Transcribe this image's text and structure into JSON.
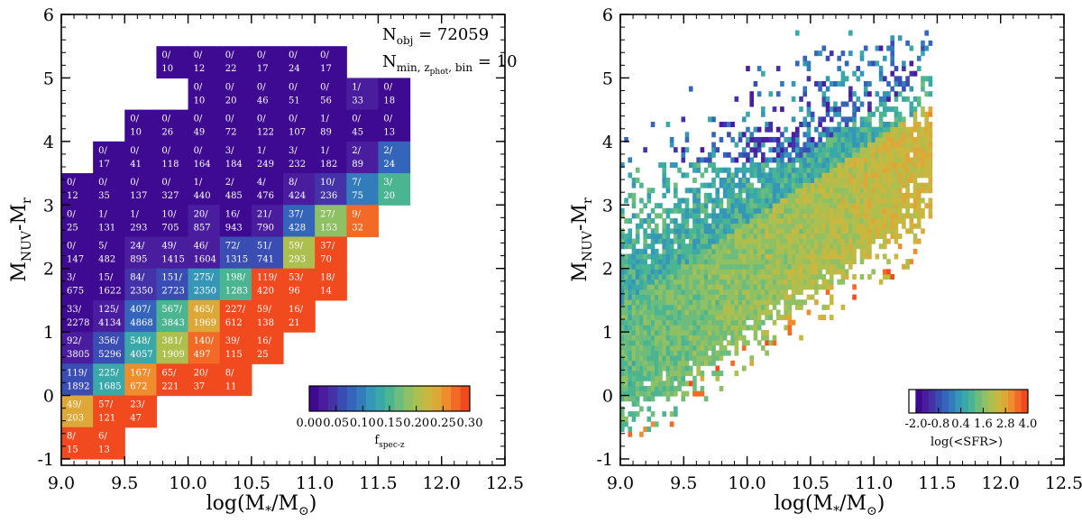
{
  "chart_data": [
    {
      "type": "heatmap",
      "title": "",
      "xlabel": {
        "base": "log(M",
        "sub": "*",
        "mid": "/M",
        "sym": "⊙",
        "end": ")"
      },
      "ylabel": {
        "base": "M",
        "sub": "NUV",
        "mid": "-M",
        "sub2": "r"
      },
      "xlim": [
        9.0,
        12.5
      ],
      "ylim": [
        -1.1,
        6.0
      ],
      "xticks": [
        "9.0",
        "9.5",
        "10.0",
        "10.5",
        "11.0",
        "11.5",
        "12.0",
        "12.5"
      ],
      "yticks": [
        "-1",
        "0",
        "1",
        "2",
        "3",
        "4",
        "5",
        "6"
      ],
      "annotation1": {
        "base": "N",
        "sub": "obj",
        "rest": " = 72059"
      },
      "annotation2": {
        "base": "N",
        "sub": "min, z",
        "subsub": "phot",
        "sub3": ", bin",
        "rest": " = 10"
      },
      "colorbar": {
        "vmin": 0.0,
        "vmax": 0.3,
        "ticks": [
          "0.00",
          "0.05",
          "0.10",
          "0.15",
          "0.20",
          "0.25",
          "0.30"
        ],
        "label_base": "f",
        "label_sub": "spec-z",
        "position": "bottom-right"
      },
      "bin_width_x": 0.25,
      "bin_height_y": 0.5,
      "cells": [
        [
          "9.75",
          "5.25",
          "0/",
          "10"
        ],
        [
          "10.0",
          "5.25",
          "0/",
          "12"
        ],
        [
          "10.25",
          "5.25",
          "0/",
          "22"
        ],
        [
          "10.5",
          "5.25",
          "0/",
          "17"
        ],
        [
          "10.75",
          "5.25",
          "0/",
          "24"
        ],
        [
          "11.0",
          "5.25",
          "0/",
          "17"
        ],
        [
          "10.0",
          "4.75",
          "0/",
          "10"
        ],
        [
          "10.25",
          "4.75",
          "0/",
          "20"
        ],
        [
          "10.5",
          "4.75",
          "0/",
          "46"
        ],
        [
          "10.75",
          "4.75",
          "0/",
          "51"
        ],
        [
          "11.0",
          "4.75",
          "0/",
          "56"
        ],
        [
          "11.25",
          "4.75",
          "1/",
          "33"
        ],
        [
          "11.5",
          "4.75",
          "0/",
          "18"
        ],
        [
          "9.5",
          "4.25",
          "0/",
          "10"
        ],
        [
          "9.75",
          "4.25",
          "0/",
          "26"
        ],
        [
          "10.0",
          "4.25",
          "0/",
          "49"
        ],
        [
          "10.25",
          "4.25",
          "0/",
          "72"
        ],
        [
          "10.5",
          "4.25",
          "0/",
          "122"
        ],
        [
          "10.75",
          "4.25",
          "0/",
          "107"
        ],
        [
          "11.0",
          "4.25",
          "1/",
          "89"
        ],
        [
          "11.25",
          "4.25",
          "0/",
          "45"
        ],
        [
          "11.5",
          "4.25",
          "0/",
          "13"
        ],
        [
          "9.25",
          "3.75",
          "0/",
          "17"
        ],
        [
          "9.5",
          "3.75",
          "0/",
          "41"
        ],
        [
          "9.75",
          "3.75",
          "0/",
          "118"
        ],
        [
          "10.0",
          "3.75",
          "0/",
          "164"
        ],
        [
          "10.25",
          "3.75",
          "3/",
          "184"
        ],
        [
          "10.5",
          "3.75",
          "1/",
          "249"
        ],
        [
          "10.75",
          "3.75",
          "3/",
          "232"
        ],
        [
          "11.0",
          "3.75",
          "1/",
          "182"
        ],
        [
          "11.25",
          "3.75",
          "2/",
          "89"
        ],
        [
          "11.5",
          "3.75",
          "2/",
          "24"
        ],
        [
          "9.0",
          "3.25",
          "0/",
          "12"
        ],
        [
          "9.25",
          "3.25",
          "0/",
          "35"
        ],
        [
          "9.5",
          "3.25",
          "0/",
          "137"
        ],
        [
          "9.75",
          "3.25",
          "0/",
          "327"
        ],
        [
          "10.0",
          "3.25",
          "1/",
          "440"
        ],
        [
          "10.25",
          "3.25",
          "2/",
          "485"
        ],
        [
          "10.5",
          "3.25",
          "4/",
          "476"
        ],
        [
          "10.75",
          "3.25",
          "8/",
          "424"
        ],
        [
          "11.0",
          "3.25",
          "10/",
          "236"
        ],
        [
          "11.25",
          "3.25",
          "7/",
          "75"
        ],
        [
          "11.5",
          "3.25",
          "3/",
          "20"
        ],
        [
          "9.0",
          "2.75",
          "0/",
          "25"
        ],
        [
          "9.25",
          "2.75",
          "1/",
          "131"
        ],
        [
          "9.5",
          "2.75",
          "1/",
          "293"
        ],
        [
          "9.75",
          "2.75",
          "10/",
          "705"
        ],
        [
          "10.0",
          "2.75",
          "20/",
          "857"
        ],
        [
          "10.25",
          "2.75",
          "16/",
          "943"
        ],
        [
          "10.5",
          "2.75",
          "21/",
          "790"
        ],
        [
          "10.75",
          "2.75",
          "37/",
          "428"
        ],
        [
          "11.0",
          "2.75",
          "27/",
          "153"
        ],
        [
          "11.25",
          "2.75",
          "9/",
          "32"
        ],
        [
          "9.0",
          "2.25",
          "0/",
          "147"
        ],
        [
          "9.25",
          "2.25",
          "5/",
          "482"
        ],
        [
          "9.5",
          "2.25",
          "24/",
          "895"
        ],
        [
          "9.75",
          "2.25",
          "49/",
          "1415"
        ],
        [
          "10.0",
          "2.25",
          "46/",
          "1604"
        ],
        [
          "10.25",
          "2.25",
          "72/",
          "1315"
        ],
        [
          "10.5",
          "2.25",
          "51/",
          "741"
        ],
        [
          "10.75",
          "2.25",
          "59/",
          "293"
        ],
        [
          "11.0",
          "2.25",
          "37/",
          "70"
        ],
        [
          "9.0",
          "1.75",
          "3/",
          "675"
        ],
        [
          "9.25",
          "1.75",
          "15/",
          "1622"
        ],
        [
          "9.5",
          "1.75",
          "84/",
          "2350"
        ],
        [
          "9.75",
          "1.75",
          "151/",
          "2723"
        ],
        [
          "10.0",
          "1.75",
          "275/",
          "2350"
        ],
        [
          "10.25",
          "1.75",
          "198/",
          "1283"
        ],
        [
          "10.5",
          "1.75",
          "119/",
          "420"
        ],
        [
          "10.75",
          "1.75",
          "53/",
          "96"
        ],
        [
          "11.0",
          "1.75",
          "18/",
          "14"
        ],
        [
          "9.0",
          "1.25",
          "33/",
          "2278"
        ],
        [
          "9.25",
          "1.25",
          "125/",
          "4134"
        ],
        [
          "9.5",
          "1.25",
          "407/",
          "4868"
        ],
        [
          "9.75",
          "1.25",
          "567/",
          "3843"
        ],
        [
          "10.0",
          "1.25",
          "465/",
          "1969"
        ],
        [
          "10.25",
          "1.25",
          "227/",
          "612"
        ],
        [
          "10.5",
          "1.25",
          "59/",
          "138"
        ],
        [
          "10.75",
          "1.25",
          "16/",
          "21"
        ],
        [
          "9.0",
          "0.75",
          "92/",
          "3805"
        ],
        [
          "9.25",
          "0.75",
          "356/",
          "5296"
        ],
        [
          "9.5",
          "0.75",
          "548/",
          "4057"
        ],
        [
          "9.75",
          "0.75",
          "381/",
          "1909"
        ],
        [
          "10.0",
          "0.75",
          "140/",
          "497"
        ],
        [
          "10.25",
          "0.75",
          "39/",
          "115"
        ],
        [
          "10.5",
          "0.75",
          "16/",
          "25"
        ],
        [
          "9.0",
          "0.25",
          "119/",
          "1892"
        ],
        [
          "9.25",
          "0.25",
          "225/",
          "1685"
        ],
        [
          "9.5",
          "0.25",
          "167/",
          "672"
        ],
        [
          "9.75",
          "0.25",
          "65/",
          "221"
        ],
        [
          "10.0",
          "0.25",
          "20/",
          "37"
        ],
        [
          "10.25",
          "0.25",
          "8/",
          "11"
        ],
        [
          "9.0",
          "-0.25",
          "49/",
          "203"
        ],
        [
          "9.25",
          "-0.25",
          "57/",
          "121"
        ],
        [
          "9.5",
          "-0.25",
          "23/",
          "47"
        ],
        [
          "9.0",
          "-0.75",
          "8/",
          "15"
        ],
        [
          "9.25",
          "-0.75",
          "6/",
          "13"
        ]
      ]
    },
    {
      "type": "heatmap",
      "title": "",
      "xlabel": {
        "base": "log(M",
        "sub": "*",
        "mid": "/M",
        "sym": "⊙",
        "end": ")"
      },
      "ylabel": {
        "base": "M",
        "sub": "NUV",
        "mid": "-M",
        "sub2": "r"
      },
      "xlim": [
        9.0,
        12.5
      ],
      "ylim": [
        -1.1,
        6.0
      ],
      "xticks": [
        "9.0",
        "9.5",
        "10.0",
        "10.5",
        "11.0",
        "11.5",
        "12.0",
        "12.5"
      ],
      "yticks": [
        "-1",
        "0",
        "1",
        "2",
        "3",
        "4",
        "5",
        "6"
      ],
      "colorbar": {
        "vmin": -2.0,
        "vmax": 4.0,
        "ticks": [
          "-2.0",
          "-0.8",
          "0.4",
          "1.6",
          "2.8",
          "4.0"
        ],
        "label": "log(<SFR>)",
        "position": "bottom-right"
      },
      "fine_bin_width_x": 0.03,
      "fine_bin_height_y": 0.08,
      "data_x_range": [
        9.0,
        11.45
      ],
      "trend": {
        "x0": 9.0,
        "y_center_at_x0": 0.6,
        "slope": 1.3,
        "spread": 1.1
      },
      "lower_envelope": {
        "x0": 9.0,
        "y_at_x0": -0.9,
        "slope": 1.35
      }
    }
  ],
  "colors": {
    "palette": [
      "#3d0a91",
      "#4a1d9e",
      "#4432a8",
      "#3a4db3",
      "#3565ba",
      "#337cbb",
      "#3596b8",
      "#3aa8a8",
      "#4bb592",
      "#6cbd7d",
      "#8fc064",
      "#adbf4e",
      "#c9b73f",
      "#dea838",
      "#ef8d2e",
      "#f26a26",
      "#f24a1f"
    ]
  }
}
